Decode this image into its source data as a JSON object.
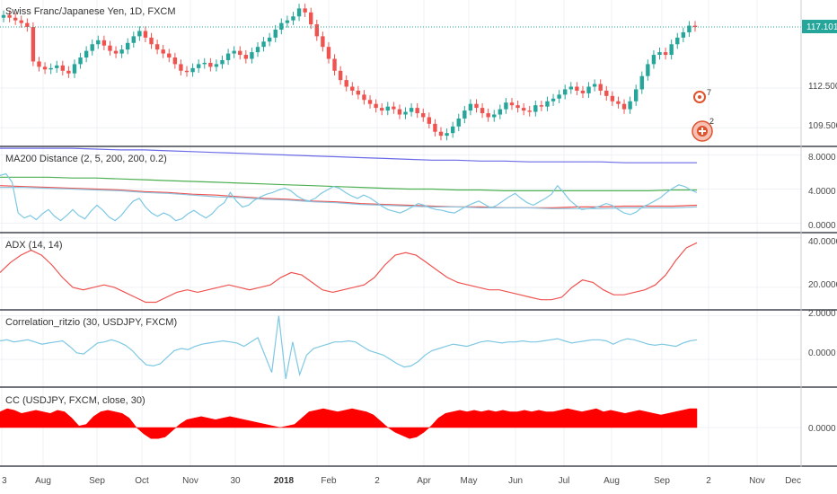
{
  "chart_data": {
    "type": "line",
    "x_axis": {
      "tick_labels": [
        "3",
        "Aug",
        "Sep",
        "Oct",
        "Nov",
        "30",
        "2018",
        "Feb",
        "2",
        "Apr",
        "May",
        "Jun",
        "Jul",
        "Aug",
        "Sep",
        "2",
        "Nov",
        "Dec"
      ],
      "bold_labels": [
        "2018"
      ]
    },
    "panels": [
      {
        "id": "price",
        "title": "Swiss Franc/Japanese Yen, 1D, FXCM",
        "chart_type": "candlestick",
        "y_ticks": [
          "112.500",
          "109.500"
        ],
        "ylim": [
          108.3,
          119.0
        ],
        "last_value_label": "117.101",
        "last_value": 117.101,
        "series": [
          {
            "name": "close",
            "values": [
              118.0,
              117.8,
              117.6,
              117.4,
              117.1,
              114.5,
              114.1,
              113.9,
              114.0,
              114.2,
              113.8,
              113.6,
              114.3,
              114.8,
              115.3,
              115.8,
              116.1,
              115.7,
              115.3,
              115.1,
              115.4,
              115.9,
              116.4,
              116.8,
              116.3,
              115.8,
              115.4,
              115.1,
              114.8,
              114.3,
              113.8,
              113.7,
              114.0,
              114.3,
              114.4,
              114.1,
              114.3,
              114.6,
              115.1,
              115.3,
              115.0,
              114.7,
              115.2,
              115.6,
              116.0,
              116.3,
              116.9,
              117.4,
              117.6,
              117.9,
              118.5,
              118.2,
              117.3,
              116.4,
              115.6,
              114.7,
              113.8,
              113.1,
              112.6,
              112.3,
              112.0,
              111.6,
              111.3,
              111.0,
              110.8,
              111.1,
              110.9,
              110.5,
              110.7,
              111.0,
              110.6,
              110.3,
              109.8,
              109.2,
              108.9,
              109.1,
              109.6,
              110.2,
              110.8,
              111.3,
              111.0,
              110.6,
              110.3,
              110.5,
              110.9,
              111.4,
              111.2,
              111.0,
              110.8,
              110.7,
              111.2,
              111.1,
              111.5,
              111.7,
              112.0,
              112.4,
              112.6,
              112.3,
              112.1,
              112.6,
              112.8,
              112.3,
              111.9,
              111.5,
              111.3,
              110.9,
              111.5,
              112.4,
              113.4,
              114.3,
              115.0,
              115.2,
              115.0,
              115.8,
              116.3,
              116.7,
              117.2,
              117.1
            ]
          }
        ],
        "annotations": [
          "7",
          "2"
        ]
      },
      {
        "id": "ma200",
        "title": "MA200 Distance (2, 5, 200, 200, 0.2)",
        "y_ticks": [
          "8.0000",
          "4.0000",
          "0.0000"
        ],
        "ylim": [
          -0.8,
          8.7
        ],
        "series": [
          {
            "color": "#6a6ae6",
            "values": [
              8.8,
              8.8,
              8.8,
              8.8,
              8.7,
              8.6,
              8.6,
              8.5,
              8.4,
              8.3,
              8.2,
              8.1,
              8.0,
              7.9,
              7.8,
              7.7,
              7.6,
              7.5,
              7.4,
              7.4,
              7.3,
              7.3,
              7.2,
              7.2,
              7.2,
              7.2,
              7.1,
              7.1,
              7.1,
              7.1
            ]
          },
          {
            "color": "#4caf50",
            "values": [
              5.4,
              5.4,
              5.4,
              5.3,
              5.3,
              5.2,
              5.1,
              5.0,
              4.9,
              4.8,
              4.7,
              4.6,
              4.5,
              4.4,
              4.3,
              4.2,
              4.1,
              4.0,
              4.0,
              3.9,
              3.9,
              3.8,
              3.8,
              3.8,
              3.8,
              3.8,
              3.8,
              3.8,
              3.9,
              3.9
            ]
          },
          {
            "color": "#ef5350",
            "values": [
              4.4,
              4.3,
              4.2,
              4.1,
              4.0,
              3.9,
              3.7,
              3.6,
              3.4,
              3.3,
              3.1,
              2.9,
              2.8,
              2.6,
              2.5,
              2.3,
              2.2,
              2.1,
              2.0,
              1.9,
              1.9,
              1.8,
              1.8,
              1.8,
              1.9,
              1.9,
              2.0,
              2.0,
              2.0,
              2.1
            ]
          },
          {
            "color": "#8fc3dd",
            "values": [
              4.2,
              4.2,
              4.1,
              4.0,
              3.9,
              3.8,
              3.6,
              3.5,
              3.3,
              3.1,
              3.0,
              2.8,
              2.7,
              2.5,
              2.4,
              2.2,
              2.1,
              2.0,
              1.9,
              1.9,
              1.8,
              1.8,
              1.8,
              1.7,
              1.7,
              1.7,
              1.8,
              1.8,
              1.8,
              1.9
            ]
          },
          {
            "color": "#7ec8e3",
            "values": [
              5.6,
              5.8,
              4.8,
              1.2,
              0.6,
              0.9,
              0.4,
              1.1,
              1.6,
              0.8,
              0.3,
              0.9,
              1.6,
              0.9,
              0.5,
              1.4,
              2.1,
              1.5,
              0.7,
              0.3,
              0.9,
              1.8,
              2.6,
              2.9,
              1.9,
              1.2,
              0.8,
              1.2,
              0.9,
              0.3,
              0.5,
              1.1,
              1.5,
              1.0,
              0.6,
              1.1,
              1.9,
              2.4,
              3.6,
              2.6,
              1.9,
              2.1,
              2.7,
              3.1,
              3.4,
              3.6,
              3.9,
              4.1,
              3.8,
              3.2,
              2.8,
              2.6,
              2.9,
              3.5,
              3.9,
              4.3,
              4.1,
              3.6,
              3.2,
              2.9,
              3.3,
              3.0,
              2.5,
              2.0,
              1.6,
              1.4,
              1.2,
              1.5,
              1.9,
              2.3,
              2.1,
              1.8,
              1.6,
              1.5,
              1.3,
              1.2,
              1.6,
              2.0,
              2.3,
              2.6,
              2.2,
              1.8,
              2.1,
              2.6,
              3.1,
              3.5,
              2.9,
              2.4,
              2.1,
              2.5,
              2.9,
              3.4,
              4.4,
              3.6,
              2.7,
              2.1,
              1.6,
              1.7,
              1.8,
              2.0,
              2.3,
              2.1,
              1.6,
              1.2,
              1.0,
              1.3,
              1.9,
              2.2,
              2.6,
              3.0,
              3.6,
              4.1,
              4.5,
              4.3,
              3.9,
              3.6
            ]
          }
        ]
      },
      {
        "id": "adx",
        "title": "ADX (14, 14)",
        "y_ticks": [
          "40.0000",
          "20.0000"
        ],
        "ylim": [
          12,
          41
        ],
        "series": [
          {
            "color": "#ef5350",
            "values": [
              26,
              30,
              33,
              35,
              33,
              29,
              24,
              20,
              19,
              20,
              21,
              20,
              18,
              16,
              14,
              14,
              16,
              18,
              19,
              18,
              19,
              20,
              21,
              20,
              19,
              20,
              21,
              24,
              26,
              25,
              22,
              19,
              18,
              19,
              20,
              21,
              24,
              29,
              33,
              34,
              33,
              30,
              27,
              24,
              22,
              21,
              20,
              19,
              19,
              18,
              17,
              16,
              15,
              15,
              16,
              20,
              23,
              22,
              19,
              17,
              17,
              18,
              19,
              21,
              25,
              31,
              36,
              38
            ]
          }
        ]
      },
      {
        "id": "correlation",
        "title": "Correlation_ritzio (30, USDJPY, FXCM)",
        "y_ticks": [
          "2.0000",
          "0.0000"
        ],
        "ylim": [
          -1.15,
          2.15
        ],
        "series": [
          {
            "color": "#7ec8e3",
            "values": [
              0.85,
              0.9,
              0.8,
              0.85,
              0.9,
              0.8,
              0.7,
              0.75,
              0.8,
              0.85,
              0.6,
              0.3,
              0.25,
              0.5,
              0.75,
              0.8,
              0.9,
              0.8,
              0.65,
              0.4,
              0.05,
              -0.25,
              -0.3,
              -0.2,
              0.1,
              0.4,
              0.5,
              0.45,
              0.6,
              0.7,
              0.75,
              0.8,
              0.85,
              0.8,
              0.75,
              0.6,
              0.8,
              1.0,
              0.2,
              -0.6,
              2.0,
              -0.9,
              0.8,
              -0.7,
              0.2,
              0.5,
              0.6,
              0.7,
              0.8,
              0.8,
              0.85,
              0.8,
              0.6,
              0.4,
              0.3,
              0.2,
              0.0,
              -0.2,
              -0.35,
              -0.3,
              -0.1,
              0.2,
              0.4,
              0.5,
              0.6,
              0.7,
              0.65,
              0.6,
              0.7,
              0.8,
              0.85,
              0.8,
              0.75,
              0.8,
              0.8,
              0.85,
              0.8,
              0.8,
              0.85,
              0.9,
              0.95,
              0.85,
              0.75,
              0.8,
              0.85,
              0.9,
              0.9,
              0.85,
              0.7,
              0.85,
              0.95,
              0.9,
              0.8,
              0.7,
              0.65,
              0.7,
              0.65,
              0.6,
              0.75,
              0.85,
              0.9
            ]
          }
        ]
      },
      {
        "id": "cc",
        "title": "CC (USDJPY, FXCM, close, 30)",
        "chart_type": "area",
        "y_ticks": [
          "0.0000"
        ],
        "ylim": [
          -1.2,
          1.2
        ],
        "series": [
          {
            "color": "#ff0000",
            "values": [
              0.5,
              0.6,
              0.55,
              0.45,
              0.5,
              0.55,
              0.5,
              0.45,
              0.55,
              0.5,
              0.3,
              0.05,
              0.1,
              0.35,
              0.5,
              0.55,
              0.5,
              0.45,
              0.3,
              0.0,
              -0.2,
              -0.35,
              -0.35,
              -0.3,
              -0.1,
              0.1,
              0.25,
              0.3,
              0.35,
              0.3,
              0.25,
              0.3,
              0.35,
              0.3,
              0.25,
              0.2,
              0.15,
              0.1,
              0.05,
              0.0,
              0.05,
              0.1,
              0.3,
              0.5,
              0.55,
              0.6,
              0.55,
              0.5,
              0.55,
              0.6,
              0.55,
              0.5,
              0.4,
              0.2,
              0.0,
              -0.15,
              -0.25,
              -0.35,
              -0.3,
              -0.15,
              0.05,
              0.3,
              0.45,
              0.5,
              0.55,
              0.5,
              0.55,
              0.5,
              0.55,
              0.5,
              0.55,
              0.5,
              0.5,
              0.55,
              0.5,
              0.55,
              0.5,
              0.5,
              0.55,
              0.6,
              0.55,
              0.5,
              0.55,
              0.6,
              0.5,
              0.55,
              0.5,
              0.45,
              0.5,
              0.55,
              0.5,
              0.45,
              0.4,
              0.45,
              0.5,
              0.55,
              0.6,
              0.6
            ]
          }
        ]
      }
    ],
    "colors": {
      "up": "#26a69a",
      "down": "#ef5350",
      "last_value_tag": "#26a69a",
      "grid": "#eef1f4",
      "separator": "#434651"
    }
  }
}
